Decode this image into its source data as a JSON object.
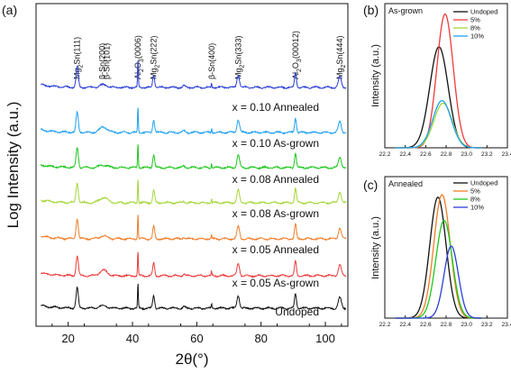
{
  "panels": {
    "a": {
      "label": "(a)"
    },
    "b": {
      "label": "(b)"
    },
    "c": {
      "label": "(c)"
    }
  },
  "chart_data": [
    {
      "panel": "(a)",
      "type": "line",
      "xlabel": "2θ(°)",
      "ylabel": "Log Intensity (a.u.)",
      "xlim": [
        10,
        107
      ],
      "xticks": [
        20,
        40,
        60,
        80,
        100
      ],
      "grid": false,
      "peaks": [
        {
          "label": "Mg2Sn(111)",
          "base": "Mg",
          "sub": "2",
          "rest": "Sn(111)",
          "x": 22.8
        },
        {
          "label": "β-Sn(200)",
          "base": "β-Sn(200)",
          "sub": "",
          "rest": "",
          "x": 30.6
        },
        {
          "label": "β-Sn(101)",
          "base": "β-Sn(101)",
          "sub": "",
          "rest": "",
          "x": 32.0
        },
        {
          "label": "Al2O3(0006)",
          "base": "Al",
          "sub": "2",
          "rest": "O",
          "sub2": "3",
          "rest2": "(0006)",
          "x": 41.7
        },
        {
          "label": "Mg2Sn(222)",
          "base": "Mg",
          "sub": "2",
          "rest": "Sn(222)",
          "x": 46.6
        },
        {
          "label": "β-Sn(400)",
          "base": "β-Sn(400)",
          "sub": "",
          "rest": "",
          "x": 64.6
        },
        {
          "label": "Mg2Sn(333)",
          "base": "Mg",
          "sub": "2",
          "rest": "Sn(333)",
          "x": 72.9
        },
        {
          "label": "Al2O3(00012)",
          "base": "Al",
          "sub": "2",
          "rest": "O",
          "sub2": "3",
          "rest2": "(00012)",
          "x": 90.7
        },
        {
          "label": "Mg2Sn(444)",
          "base": "Mg",
          "sub": "2",
          "rest": "Sn(444)",
          "x": 104.5
        }
      ],
      "series": [
        {
          "name": "x = 0.10 Annealed",
          "color": "#2a3fd6"
        },
        {
          "name": "x = 0.10 As-grown",
          "color": "#1ea0f0"
        },
        {
          "name": "x = 0.08 Annealed",
          "color": "#1ec81e"
        },
        {
          "name": "x = 0.08 As-grown",
          "color": "#a6d63a"
        },
        {
          "name": "x = 0.05 Annealed",
          "color": "#f07d28"
        },
        {
          "name": "x = 0.05 As-grown",
          "color": "#ee3b3b"
        },
        {
          "name": "Undoped",
          "color": "#111111"
        }
      ]
    },
    {
      "panel": "(b)",
      "type": "line",
      "annotation": "As-grown",
      "ylabel": "Intensity (a.u.)",
      "xlim": [
        22.2,
        23.4
      ],
      "xticks": [
        "22.2",
        "22.4",
        "22.6",
        "22.8",
        "23.0",
        "23.2",
        "23.4"
      ],
      "ylim": [
        0,
        1.1
      ],
      "legend": "top-right",
      "series": [
        {
          "name": "Undoped",
          "color": "#111111",
          "center": 22.73,
          "amplitude": 0.77,
          "sigma": 0.09
        },
        {
          "name": "5%",
          "color": "#ee3b3b",
          "center": 22.79,
          "amplitude": 1.02,
          "sigma": 0.08
        },
        {
          "name": "8%",
          "color": "#a6d63a",
          "center": 22.77,
          "amplitude": 0.34,
          "sigma": 0.09
        },
        {
          "name": "10%",
          "color": "#1ea0f0",
          "center": 22.76,
          "amplitude": 0.36,
          "sigma": 0.09
        }
      ]
    },
    {
      "panel": "(c)",
      "type": "line",
      "annotation": "Annealed",
      "ylabel": "Intensity (a.u.)",
      "xlim": [
        22.2,
        23.4
      ],
      "xticks": [
        "22.2",
        "22.4",
        "22.6",
        "22.8",
        "23.0",
        "23.2",
        "23.4"
      ],
      "ylim": [
        0,
        1.1
      ],
      "legend": "top-right",
      "series": [
        {
          "name": "Undoped",
          "color": "#111111",
          "center": 22.72,
          "amplitude": 0.94,
          "sigma": 0.08
        },
        {
          "name": "5%",
          "color": "#f07d28",
          "center": 22.76,
          "amplitude": 0.96,
          "sigma": 0.08
        },
        {
          "name": "8%",
          "color": "#1ec81e",
          "center": 22.78,
          "amplitude": 0.76,
          "sigma": 0.08
        },
        {
          "name": "10%",
          "color": "#2a3fd6",
          "center": 22.85,
          "amplitude": 0.56,
          "sigma": 0.07
        }
      ]
    }
  ]
}
